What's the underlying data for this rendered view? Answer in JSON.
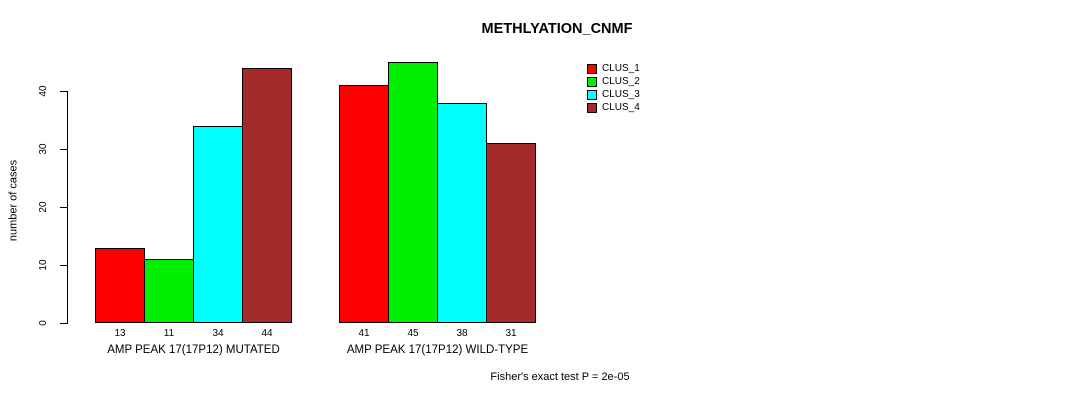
{
  "chart_data": {
    "type": "bar",
    "title": "METHLYATION_CNMF",
    "ylabel": "number of cases",
    "xlabel": "",
    "yticks": [
      0,
      10,
      20,
      30,
      40
    ],
    "ylim": [
      0,
      46
    ],
    "grid": false,
    "legend_position": "top-right",
    "categories": [
      "AMP PEAK 17(17P12) MUTATED",
      "AMP PEAK 17(17P12) WILD-TYPE"
    ],
    "series": [
      {
        "name": "CLUS_1",
        "color": "#ff0000",
        "values": [
          13,
          41
        ]
      },
      {
        "name": "CLUS_2",
        "color": "#00ee00",
        "values": [
          11,
          45
        ]
      },
      {
        "name": "CLUS_3",
        "color": "#00ffff",
        "values": [
          34,
          38
        ]
      },
      {
        "name": "CLUS_4",
        "color": "#a52a2a",
        "values": [
          44,
          31
        ]
      }
    ],
    "bar_value_labels": {
      "group1": [
        13,
        11,
        34,
        44
      ],
      "group2": [
        41,
        45,
        38,
        31
      ]
    },
    "annotation": "Fisher's exact test P = 2e-05"
  },
  "colors": {
    "axis": "#000000",
    "text": "#000000",
    "background": "#ffffff"
  }
}
